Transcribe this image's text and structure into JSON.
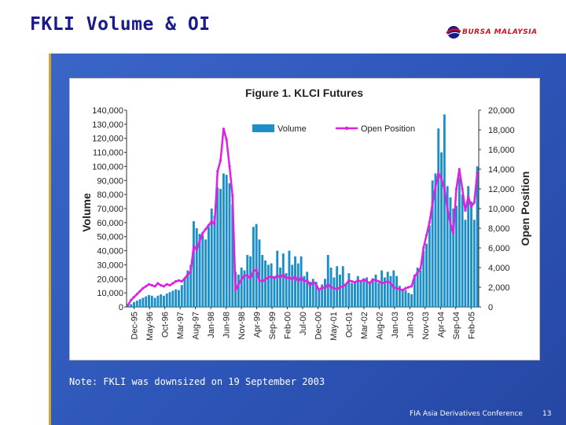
{
  "slide": {
    "title": "FKLI Volume & OI",
    "logo_text": "BURSA MALAYSIA",
    "note": "Note: FKLI was downsized on 19 September 2003",
    "footer": "FIA Asia Derivatives Conference",
    "page_number": "13"
  },
  "colors": {
    "panel": "#2d55b8",
    "title": "#1a1a8c",
    "volume_bar": "#1c8fc8",
    "open_position_line": "#e020e0",
    "accent_line": "#d9a520"
  },
  "chart_data": {
    "type": "bar",
    "title": "Figure 1. KLCI Futures",
    "ylabel": "Volume",
    "y2label": "Open Position",
    "ylim": [
      0,
      140000
    ],
    "y2lim": [
      0,
      20000
    ],
    "yticks": [
      "0",
      "10,000",
      "20,000",
      "30,000",
      "40,000",
      "50,000",
      "60,000",
      "70,000",
      "80,000",
      "90,000",
      "100,000",
      "110,000",
      "120,000",
      "130,000",
      "140,000"
    ],
    "y2ticks": [
      "0",
      "2,000",
      "4,000",
      "6,000",
      "8,000",
      "10,000",
      "12,000",
      "14,000",
      "16,000",
      "18,000",
      "20,000"
    ],
    "xticks": [
      "Dec-95",
      "May-96",
      "Oct-96",
      "Mar-97",
      "Aug-97",
      "Jan-98",
      "Jun-98",
      "Nov-98",
      "Apr-99",
      "Sep-99",
      "Feb-00",
      "Jul-00",
      "Dec-00",
      "May-01",
      "Oct-01",
      "Mar-02",
      "Aug-02",
      "Jan-03",
      "Jun-03",
      "Nov-03",
      "Apr-04",
      "Sep-04",
      "Feb-05"
    ],
    "legend": [
      "Volume",
      "Open Position"
    ],
    "legend_position": "top",
    "series": [
      {
        "name": "Volume",
        "kind": "bar",
        "values": [
          1000,
          2000,
          3500,
          4500,
          5500,
          6500,
          7500,
          8500,
          8000,
          6500,
          8000,
          9000,
          8000,
          9500,
          10500,
          11500,
          12500,
          12000,
          15500,
          20000,
          26000,
          30000,
          61000,
          56000,
          52000,
          51000,
          48000,
          57000,
          70000,
          65000,
          85000,
          84000,
          95000,
          94000,
          88000,
          73000,
          25000,
          23000,
          28000,
          26000,
          37000,
          36000,
          57000,
          59000,
          48000,
          37000,
          33000,
          30000,
          31000,
          22000,
          40000,
          28000,
          38000,
          24000,
          40000,
          30000,
          36000,
          31000,
          36000,
          22000,
          25000,
          18000,
          20000,
          18000,
          12000,
          16000,
          20000,
          37000,
          28000,
          21000,
          29000,
          23000,
          29000,
          16000,
          24000,
          17000,
          18000,
          22000,
          19000,
          19000,
          21000,
          18000,
          20000,
          23000,
          17000,
          26000,
          21000,
          25000,
          22000,
          26000,
          22000,
          15000,
          12000,
          12000,
          10000,
          9000,
          23000,
          28000,
          26000,
          40000,
          45000,
          58000,
          90000,
          95000,
          127000,
          110000,
          137000,
          86000,
          78000,
          70000,
          72000,
          92000,
          80000,
          62000,
          86000,
          75000,
          62000,
          100000
        ]
      },
      {
        "name": "Open Position",
        "kind": "line",
        "values": [
          200,
          700,
          1000,
          1300,
          1600,
          1900,
          2100,
          2300,
          2200,
          2100,
          2400,
          2200,
          2100,
          2300,
          2200,
          2400,
          2600,
          2700,
          2600,
          2900,
          3300,
          3600,
          6200,
          5800,
          6700,
          7500,
          7900,
          8300,
          8700,
          8400,
          13800,
          14900,
          18100,
          17000,
          14300,
          11300,
          1700,
          2300,
          2800,
          3200,
          3200,
          2900,
          3600,
          3800,
          2700,
          2600,
          2800,
          3000,
          3100,
          2900,
          3200,
          3000,
          3300,
          2900,
          3000,
          2800,
          3100,
          2600,
          3000,
          2600,
          2700,
          2200,
          2500,
          2300,
          1700,
          2000,
          1900,
          2300,
          2000,
          1900,
          1800,
          2000,
          2100,
          2300,
          2700,
          2600,
          2500,
          2700,
          2600,
          2800,
          2600,
          2400,
          2800,
          2700,
          2600,
          2400,
          2500,
          2600,
          2400,
          2000,
          1900,
          1800,
          1700,
          1900,
          2000,
          2100,
          3100,
          3500,
          3900,
          6000,
          7300,
          8600,
          10500,
          12200,
          13600,
          13000,
          12000,
          10000,
          8500,
          7500,
          12000,
          14000,
          12000,
          9800,
          11200,
          10200,
          10600,
          13600
        ]
      }
    ]
  }
}
